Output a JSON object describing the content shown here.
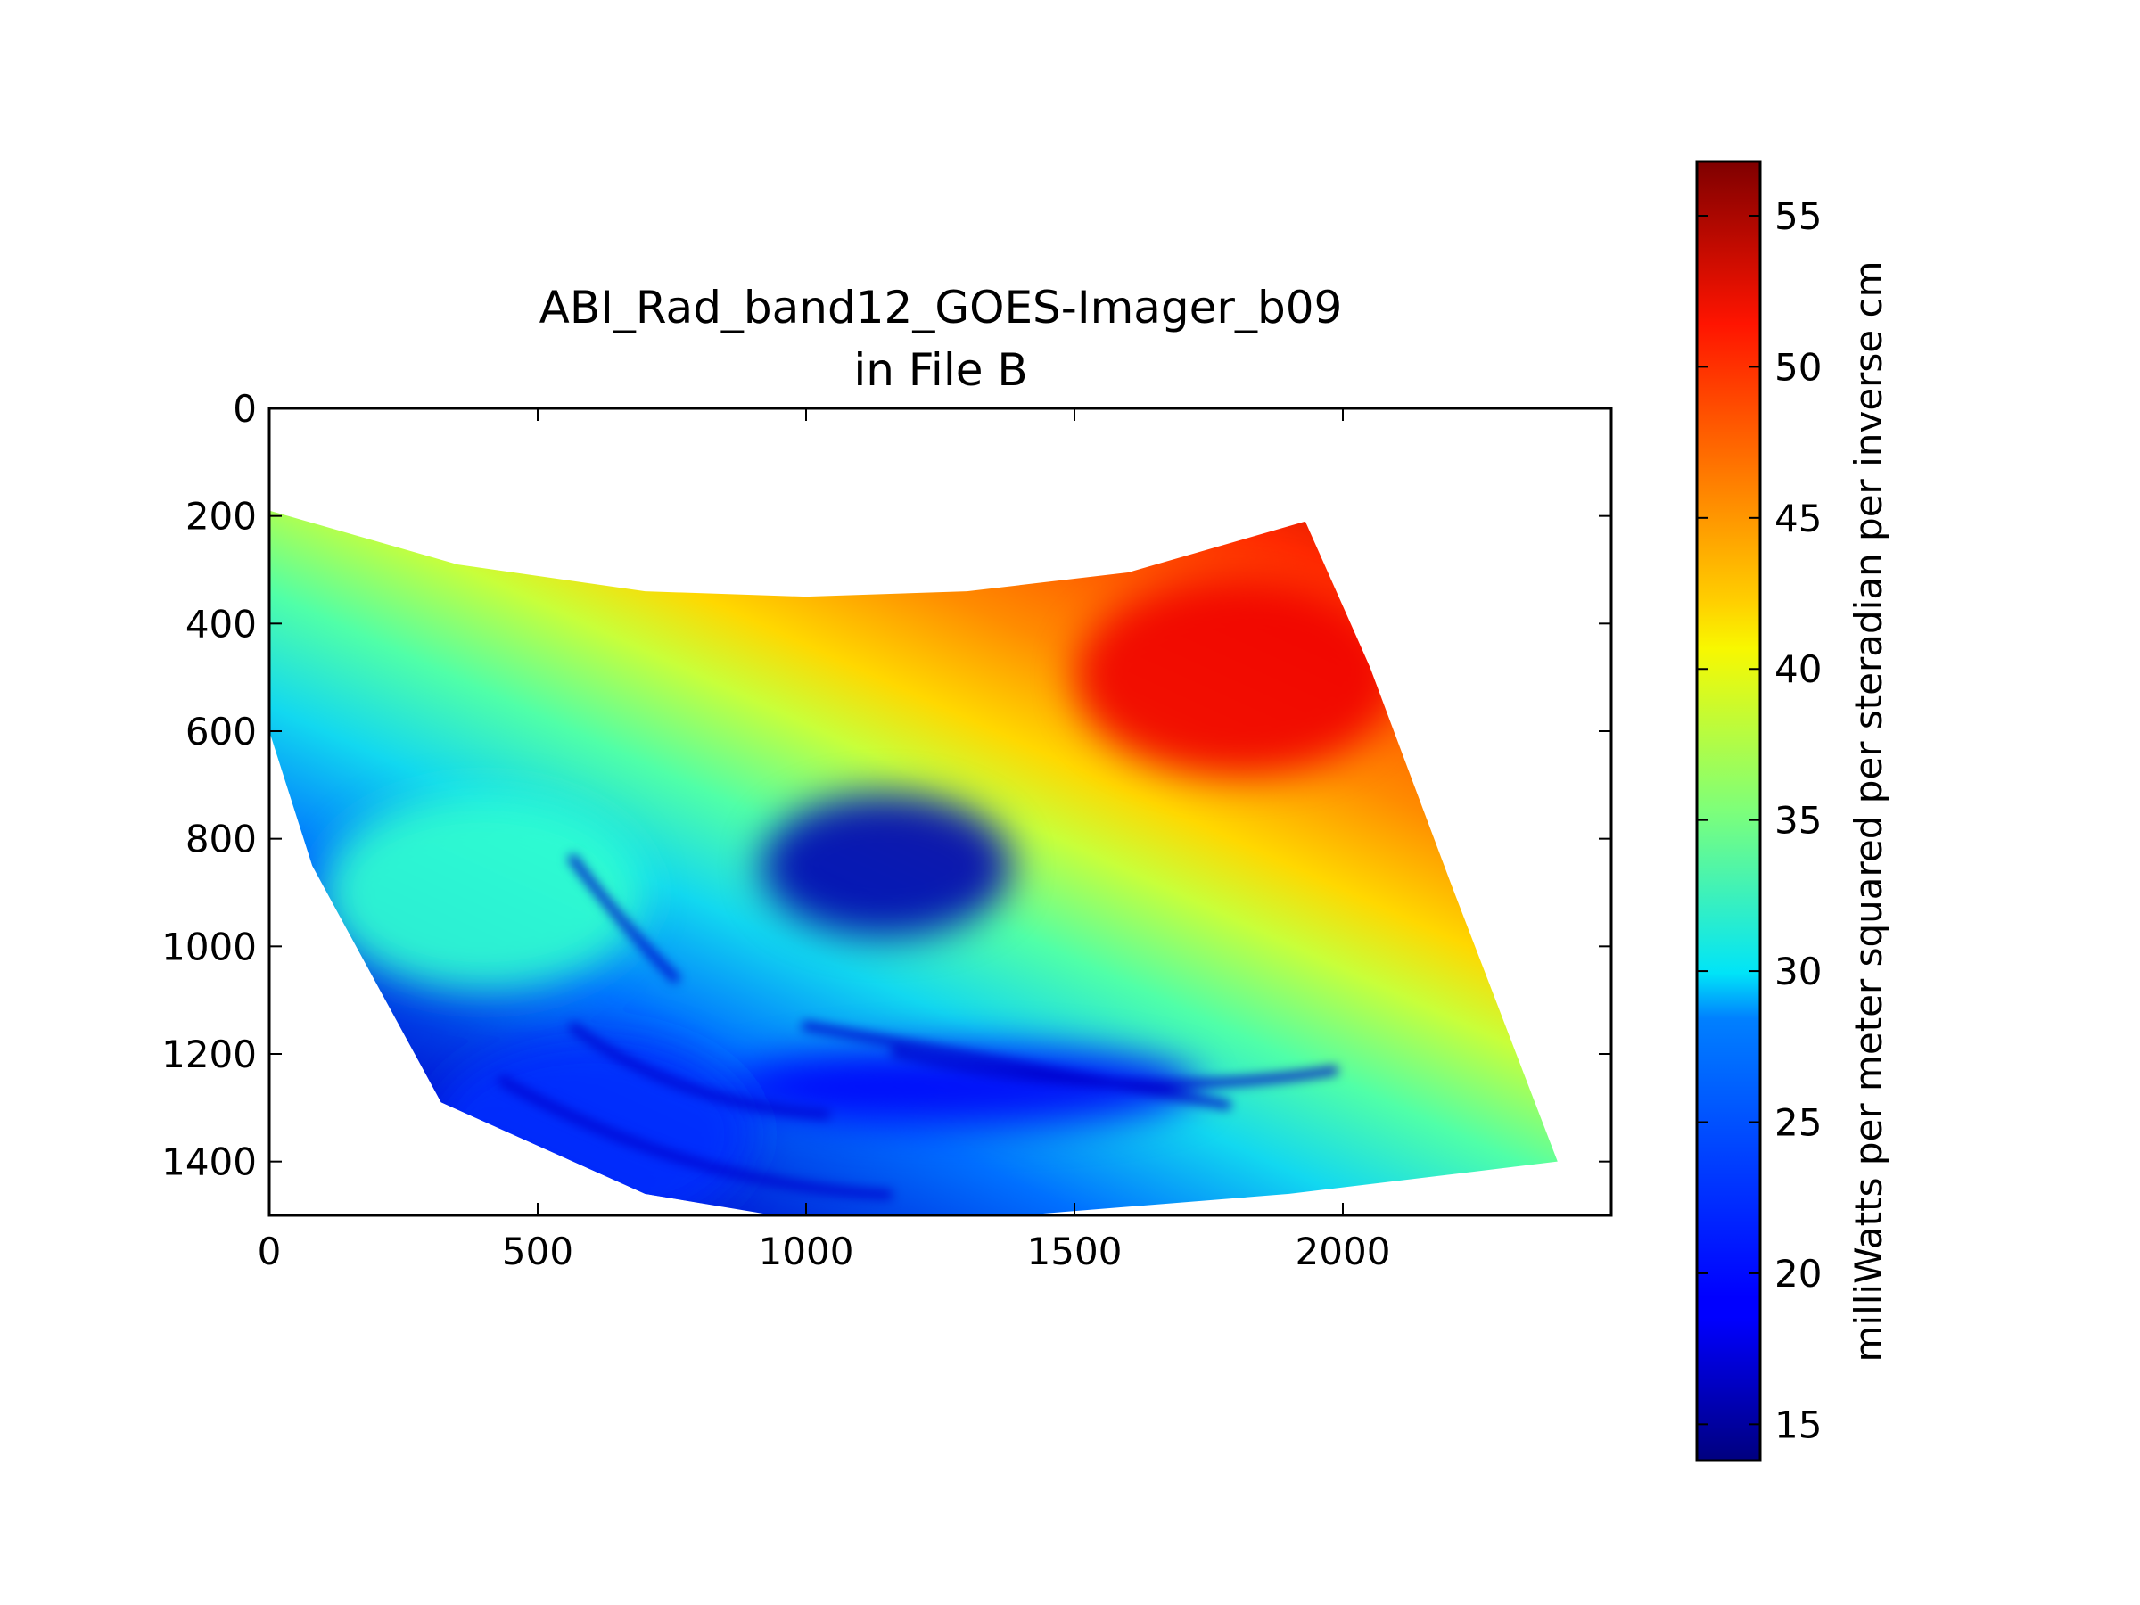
{
  "chart_data": {
    "type": "heatmap",
    "title": "ABI_Rad_band12_GOES-Imager_b09\nin File B",
    "xlabel": "",
    "ylabel": "",
    "xlim": [
      0,
      2500
    ],
    "ylim": [
      1500,
      0
    ],
    "y_axis_inverted": true,
    "x_ticks": [
      0,
      500,
      1000,
      1500,
      2000
    ],
    "y_ticks": [
      0,
      200,
      400,
      600,
      800,
      1000,
      1200,
      1400
    ],
    "grid": false,
    "colormap": "jet",
    "colorbar": {
      "label": "milliWatts per meter squared per steradian per inverse cm",
      "range": [
        13.8,
        56.8
      ],
      "ticks": [
        15,
        20,
        25,
        30,
        35,
        40,
        45,
        50,
        55
      ]
    },
    "data_region": {
      "description_of_values": "curved satellite swath of radiance values",
      "boundary": [
        [
          0,
          190
        ],
        [
          350,
          290
        ],
        [
          700,
          340
        ],
        [
          1000,
          350
        ],
        [
          1300,
          340
        ],
        [
          1600,
          305
        ],
        [
          1930,
          210
        ],
        [
          2050,
          480
        ],
        [
          2200,
          880
        ],
        [
          2400,
          1400
        ],
        [
          1900,
          1460
        ],
        [
          1400,
          1500
        ],
        [
          1000,
          1510
        ],
        [
          700,
          1460
        ],
        [
          320,
          1290
        ],
        [
          200,
          1070
        ],
        [
          80,
          850
        ],
        [
          0,
          600
        ]
      ],
      "features": [
        {
          "label": "warm region",
          "x": 1800,
          "y": 500,
          "value": 52
        },
        {
          "label": "cold cloud core",
          "x": 1150,
          "y": 850,
          "value": 16
        },
        {
          "label": "cold spiral band",
          "x": 1300,
          "y": 1260,
          "value": 19
        },
        {
          "label": "southern cold limb",
          "x": 600,
          "y": 1350,
          "value": 21
        },
        {
          "label": "mid-latitude",
          "x": 400,
          "y": 900,
          "value": 32
        }
      ]
    }
  }
}
